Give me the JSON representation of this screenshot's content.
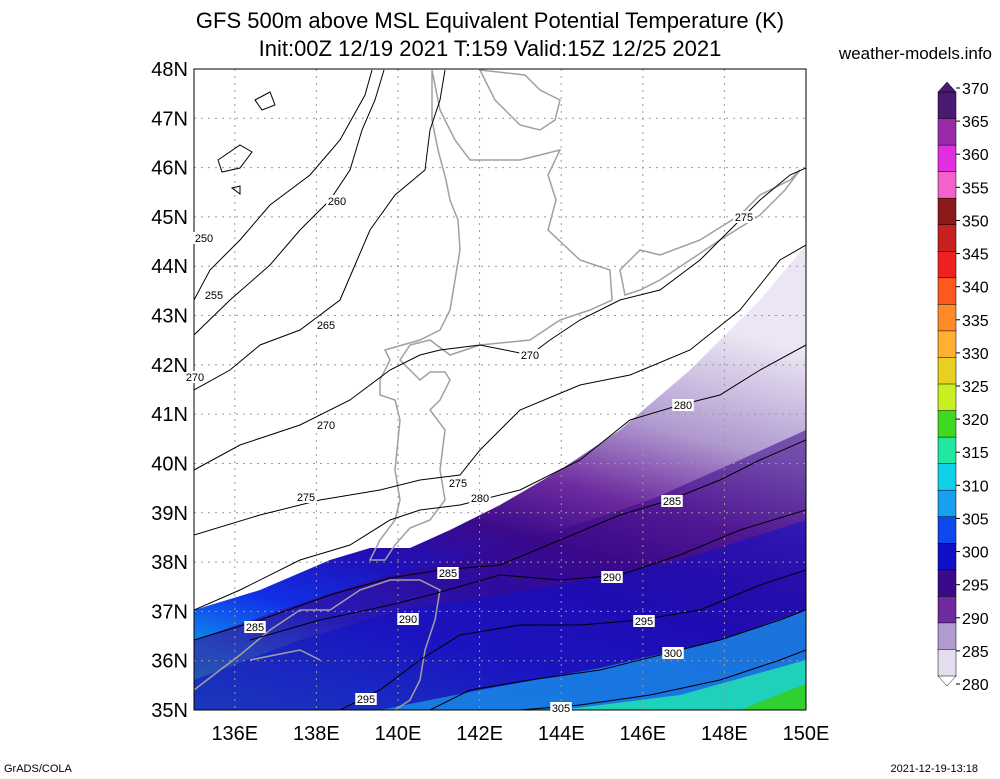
{
  "header": {
    "title": "GFS 500m above MSL Equivalent Potential Temperature (K)",
    "subtitle": "Init:00Z 12/19 2021 T:159 Valid:15Z 12/25 2021",
    "site": "weather-models.info"
  },
  "footer": {
    "left": "GrADS/COLA",
    "right": "2021-12-19-13:18"
  },
  "map": {
    "lat_labels": [
      "48N",
      "47N",
      "46N",
      "45N",
      "44N",
      "43N",
      "42N",
      "41N",
      "40N",
      "39N",
      "38N",
      "37N",
      "36N",
      "35N"
    ],
    "lon_labels": [
      "136E",
      "138E",
      "140E",
      "142E",
      "144E",
      "146E",
      "148E",
      "150E"
    ],
    "contour_labels": [
      "250",
      "255",
      "260",
      "265",
      "270",
      "270",
      "270",
      "275",
      "275",
      "275",
      "280",
      "280",
      "285",
      "285",
      "285",
      "290",
      "290",
      "295",
      "295",
      "300",
      "305"
    ]
  },
  "colorbar": {
    "labels": [
      "370",
      "365",
      "360",
      "355",
      "350",
      "345",
      "340",
      "335",
      "330",
      "325",
      "320",
      "315",
      "310",
      "305",
      "300",
      "295",
      "290",
      "285",
      "280"
    ],
    "colors": [
      "#4a1a73",
      "#9a2aa8",
      "#e02ee0",
      "#f262c8",
      "#8b1a1a",
      "#c8201e",
      "#ee2020",
      "#ff5a1e",
      "#ff8a28",
      "#ffb030",
      "#e8d020",
      "#c8f020",
      "#40d820",
      "#20e8a0",
      "#10d0e8",
      "#18a0f0",
      "#1048f0",
      "#1010c8",
      "#3a0a8a",
      "#6e2a9e",
      "#b09ad0",
      "#e4dcef"
    ]
  }
}
